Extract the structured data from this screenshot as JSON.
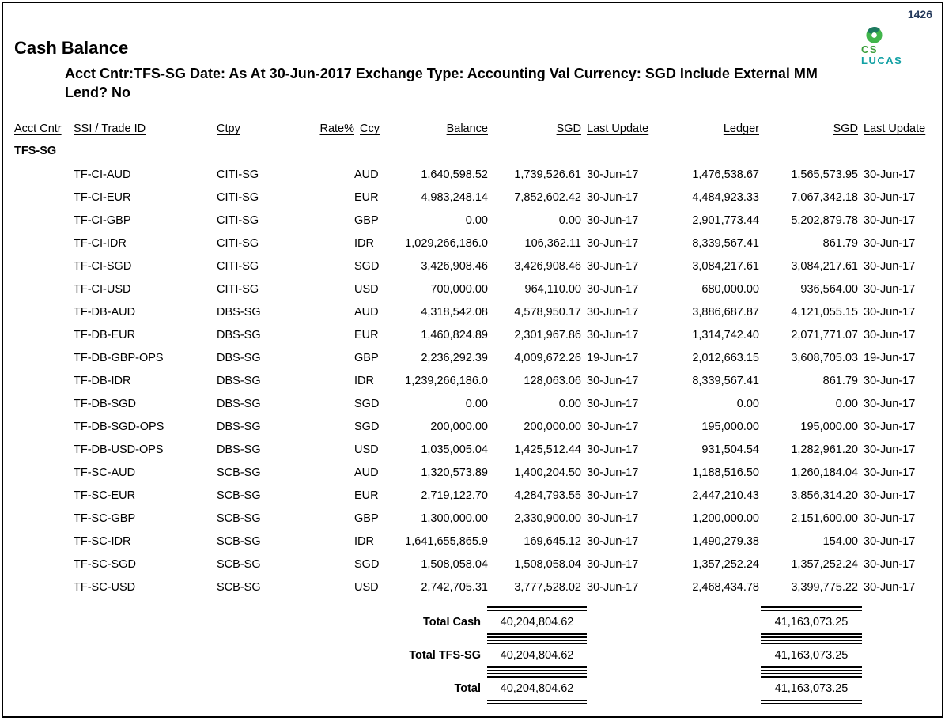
{
  "header": {
    "page_number": "1426",
    "page_number_color": "#24395b",
    "title": "Cash Balance",
    "criteria_line1": "Acct Cntr:TFS-SG Date: As At  30-Jun-2017 Exchange Type: Accounting Val Currency: SGD  Include External MM",
    "criteria_line2": "Lend? No",
    "logo": {
      "text_top": "CS",
      "text_bottom": "LUCAS",
      "green": "#3a9e3a",
      "teal": "#12a0a4",
      "ring_light": "#41b54b",
      "ring_dark": "#1d7a5f"
    }
  },
  "table": {
    "headers": [
      "Acct Cntr",
      "SSI / Trade ID",
      "Ctpy",
      "Rate%",
      "Ccy",
      "Balance",
      "SGD",
      "Last Update",
      "Ledger",
      "SGD",
      "Last Update"
    ],
    "group_label": "TFS-SG",
    "rows": [
      {
        "ssi": "TF-CI-AUD",
        "ctpy": "CITI-SG",
        "ccy": "AUD",
        "balance": "1,640,598.52",
        "sgd": "1,739,526.61",
        "last_update": "30-Jun-17",
        "ledger": "1,476,538.67",
        "ledger_sgd": "1,565,573.95",
        "ledger_last_update": "30-Jun-17"
      },
      {
        "ssi": "TF-CI-EUR",
        "ctpy": "CITI-SG",
        "ccy": "EUR",
        "balance": "4,983,248.14",
        "sgd": "7,852,602.42",
        "last_update": "30-Jun-17",
        "ledger": "4,484,923.33",
        "ledger_sgd": "7,067,342.18",
        "ledger_last_update": "30-Jun-17"
      },
      {
        "ssi": "TF-CI-GBP",
        "ctpy": "CITI-SG",
        "ccy": "GBP",
        "balance": "0.00",
        "sgd": "0.00",
        "last_update": "30-Jun-17",
        "ledger": "2,901,773.44",
        "ledger_sgd": "5,202,879.78",
        "ledger_last_update": "30-Jun-17"
      },
      {
        "ssi": "TF-CI-IDR",
        "ctpy": "CITI-SG",
        "ccy": "IDR",
        "balance": "1,029,266,186.0",
        "sgd": "106,362.11",
        "last_update": "30-Jun-17",
        "ledger": "8,339,567.41",
        "ledger_sgd": "861.79",
        "ledger_last_update": "30-Jun-17"
      },
      {
        "ssi": "TF-CI-SGD",
        "ctpy": "CITI-SG",
        "ccy": "SGD",
        "balance": "3,426,908.46",
        "sgd": "3,426,908.46",
        "last_update": "30-Jun-17",
        "ledger": "3,084,217.61",
        "ledger_sgd": "3,084,217.61",
        "ledger_last_update": "30-Jun-17"
      },
      {
        "ssi": "TF-CI-USD",
        "ctpy": "CITI-SG",
        "ccy": "USD",
        "balance": "700,000.00",
        "sgd": "964,110.00",
        "last_update": "30-Jun-17",
        "ledger": "680,000.00",
        "ledger_sgd": "936,564.00",
        "ledger_last_update": "30-Jun-17"
      },
      {
        "ssi": "TF-DB-AUD",
        "ctpy": "DBS-SG",
        "ccy": "AUD",
        "balance": "4,318,542.08",
        "sgd": "4,578,950.17",
        "last_update": "30-Jun-17",
        "ledger": "3,886,687.87",
        "ledger_sgd": "4,121,055.15",
        "ledger_last_update": "30-Jun-17"
      },
      {
        "ssi": "TF-DB-EUR",
        "ctpy": "DBS-SG",
        "ccy": "EUR",
        "balance": "1,460,824.89",
        "sgd": "2,301,967.86",
        "last_update": "30-Jun-17",
        "ledger": "1,314,742.40",
        "ledger_sgd": "2,071,771.07",
        "ledger_last_update": "30-Jun-17"
      },
      {
        "ssi": "TF-DB-GBP-OPS",
        "ctpy": "DBS-SG",
        "ccy": "GBP",
        "balance": "2,236,292.39",
        "sgd": "4,009,672.26",
        "last_update": "19-Jun-17",
        "ledger": "2,012,663.15",
        "ledger_sgd": "3,608,705.03",
        "ledger_last_update": "19-Jun-17"
      },
      {
        "ssi": "TF-DB-IDR",
        "ctpy": "DBS-SG",
        "ccy": "IDR",
        "balance": "1,239,266,186.0",
        "sgd": "128,063.06",
        "last_update": "30-Jun-17",
        "ledger": "8,339,567.41",
        "ledger_sgd": "861.79",
        "ledger_last_update": "30-Jun-17"
      },
      {
        "ssi": "TF-DB-SGD",
        "ctpy": "DBS-SG",
        "ccy": "SGD",
        "balance": "0.00",
        "sgd": "0.00",
        "last_update": "30-Jun-17",
        "ledger": "0.00",
        "ledger_sgd": "0.00",
        "ledger_last_update": "30-Jun-17"
      },
      {
        "ssi": "TF-DB-SGD-OPS",
        "ctpy": "DBS-SG",
        "ccy": "SGD",
        "balance": "200,000.00",
        "sgd": "200,000.00",
        "last_update": "30-Jun-17",
        "ledger": "195,000.00",
        "ledger_sgd": "195,000.00",
        "ledger_last_update": "30-Jun-17"
      },
      {
        "ssi": "TF-DB-USD-OPS",
        "ctpy": "DBS-SG",
        "ccy": "USD",
        "balance": "1,035,005.04",
        "sgd": "1,425,512.44",
        "last_update": "30-Jun-17",
        "ledger": "931,504.54",
        "ledger_sgd": "1,282,961.20",
        "ledger_last_update": "30-Jun-17"
      },
      {
        "ssi": "TF-SC-AUD",
        "ctpy": "SCB-SG",
        "ccy": "AUD",
        "balance": "1,320,573.89",
        "sgd": "1,400,204.50",
        "last_update": "30-Jun-17",
        "ledger": "1,188,516.50",
        "ledger_sgd": "1,260,184.04",
        "ledger_last_update": "30-Jun-17"
      },
      {
        "ssi": "TF-SC-EUR",
        "ctpy": "SCB-SG",
        "ccy": "EUR",
        "balance": "2,719,122.70",
        "sgd": "4,284,793.55",
        "last_update": "30-Jun-17",
        "ledger": "2,447,210.43",
        "ledger_sgd": "3,856,314.20",
        "ledger_last_update": "30-Jun-17"
      },
      {
        "ssi": "TF-SC-GBP",
        "ctpy": "SCB-SG",
        "ccy": "GBP",
        "balance": "1,300,000.00",
        "sgd": "2,330,900.00",
        "last_update": "30-Jun-17",
        "ledger": "1,200,000.00",
        "ledger_sgd": "2,151,600.00",
        "ledger_last_update": "30-Jun-17"
      },
      {
        "ssi": "TF-SC-IDR",
        "ctpy": "SCB-SG",
        "ccy": "IDR",
        "balance": "1,641,655,865.9",
        "sgd": "169,645.12",
        "last_update": "30-Jun-17",
        "ledger": "1,490,279.38",
        "ledger_sgd": "154.00",
        "ledger_last_update": "30-Jun-17"
      },
      {
        "ssi": "TF-SC-SGD",
        "ctpy": "SCB-SG",
        "ccy": "SGD",
        "balance": "1,508,058.04",
        "sgd": "1,508,058.04",
        "last_update": "30-Jun-17",
        "ledger": "1,357,252.24",
        "ledger_sgd": "1,357,252.24",
        "ledger_last_update": "30-Jun-17"
      },
      {
        "ssi": "TF-SC-USD",
        "ctpy": "SCB-SG",
        "ccy": "USD",
        "balance": "2,742,705.31",
        "sgd": "3,777,528.02",
        "last_update": "30-Jun-17",
        "ledger": "2,468,434.78",
        "ledger_sgd": "3,399,775.22",
        "ledger_last_update": "30-Jun-17"
      }
    ]
  },
  "totals": [
    {
      "label": "Total Cash",
      "sgd": "40,204,804.62",
      "ledger_sgd": "41,163,073.25"
    },
    {
      "label": "Total TFS-SG",
      "sgd": "40,204,804.62",
      "ledger_sgd": "41,163,073.25"
    },
    {
      "label": "Total",
      "sgd": "40,204,804.62",
      "ledger_sgd": "41,163,073.25"
    }
  ]
}
